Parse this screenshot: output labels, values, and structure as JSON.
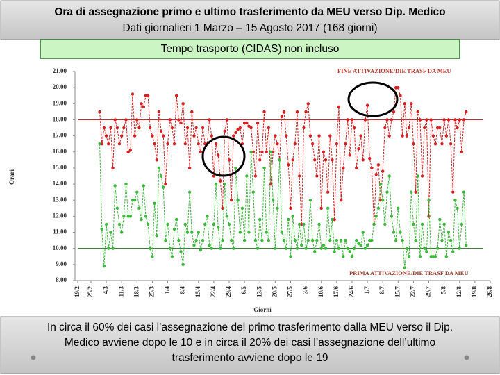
{
  "header": {
    "title": "Ora di assegnazione primo e ultimo trasferimento da MEU verso Dip. Medico",
    "subtitle": "Dati giornalieri 1 Marzo – 15 Agosto 2017 (168 giorni)",
    "note": "Tempo trasporto (CIDAS) non incluso"
  },
  "chart_data": {
    "type": "line",
    "x_label": "Giorni",
    "y_label": "Orari",
    "x": [
      0,
      1,
      2,
      3,
      4,
      5,
      6,
      7,
      8,
      9,
      10,
      11,
      12,
      13,
      14,
      15,
      16,
      17,
      18,
      19,
      20,
      21,
      22,
      23,
      24,
      25,
      26,
      27,
      28,
      29,
      30,
      31,
      32,
      33,
      34,
      35,
      36,
      37,
      38,
      39,
      40,
      41,
      42,
      43,
      44,
      45,
      46,
      47,
      48,
      49,
      50,
      51,
      52,
      53,
      54,
      55,
      56,
      57,
      58,
      59,
      60,
      61,
      62,
      63,
      64,
      65,
      66,
      67,
      68,
      69,
      70,
      71,
      72,
      73,
      74,
      75,
      76,
      77,
      78,
      79,
      80,
      81,
      82,
      83,
      84,
      85,
      86,
      87,
      88,
      89,
      90,
      91,
      92,
      93,
      94,
      95,
      96,
      97,
      98,
      99,
      100,
      101,
      102,
      103,
      104,
      105,
      106,
      107,
      108,
      109,
      110,
      111,
      112,
      113,
      114,
      115,
      116,
      117,
      118,
      119,
      120,
      121,
      122,
      123,
      124,
      125,
      126,
      127,
      128,
      129,
      130,
      131,
      132,
      133,
      134,
      135,
      136,
      137,
      138,
      139,
      140,
      141,
      142,
      143,
      144,
      145,
      146,
      147,
      148,
      149,
      150,
      151,
      152,
      153,
      154,
      155,
      156,
      157,
      158,
      159,
      160,
      161,
      162,
      163,
      164,
      165,
      166,
      167
    ],
    "series": [
      {
        "name": "FINE ATTIVAZIONE/DIE TRASF DA MEU",
        "color": "#d42020",
        "reference": 18,
        "values": [
          18.5,
          16.5,
          17.5,
          17.0,
          16.5,
          17.5,
          15.0,
          18.0,
          17.5,
          16.5,
          17.0,
          17.5,
          18.0,
          16.0,
          16.1,
          19.6,
          17.0,
          18.0,
          17.5,
          19.0,
          18.8,
          19.5,
          19.5,
          17.5,
          17.0,
          16.5,
          15.5,
          18.5,
          17.3,
          17.0,
          14.0,
          16.5,
          18.0,
          17.5,
          16.5,
          19.5,
          18.0,
          17.8,
          19.0,
          16.5,
          17.5,
          15.0,
          18.5,
          17.0,
          17.5,
          16.5,
          16.0,
          17.5,
          16.5,
          16.5,
          18.0,
          17.0,
          14.5,
          16.5,
          15.8,
          14.2,
          12.5,
          17.3,
          18.0,
          15.5,
          13.0,
          17.0,
          17.2,
          17.4,
          17.5,
          16.5,
          17.8,
          17.8,
          17.6,
          17.5,
          16.0,
          14.5,
          17.8,
          15.5,
          16.0,
          18.5,
          16.0,
          17.5,
          14.0,
          16.0,
          17.0,
          16.5,
          15.5,
          18.2,
          18.5,
          17.0,
          15.2,
          12.5,
          15.5,
          16.5,
          18.5,
          14.5,
          11.5,
          17.5,
          18.5,
          19.0,
          17.0,
          16.5,
          15.5,
          14.5,
          17.0,
          12.5,
          16.0,
          15.5,
          13.5,
          17.0,
          15.5,
          11.8,
          16.5,
          18.8,
          13.0,
          15.0,
          16.5,
          18.0,
          15.8,
          18.0,
          17.5,
          15.0,
          16.2,
          17.0,
          15.5,
          18.0,
          18.9,
          15.6,
          15.0,
          11.5,
          14.6,
          15.2,
          13.0,
          14.8,
          17.5,
          18.0,
          17.0,
          18.0,
          18.5,
          20.0,
          20.0,
          19.5,
          17.0,
          19.0,
          17.0,
          17.5,
          19.0,
          16.5,
          13.5,
          18.5,
          18.0,
          14.5,
          17.5,
          18.0,
          12.0,
          18.0,
          17.0,
          16.5,
          17.5,
          17.5,
          16.5,
          18.0,
          17.0,
          18.0,
          16.5,
          13.5,
          18.0,
          17.5,
          18.0,
          16.0,
          18.0,
          18.5
        ]
      },
      {
        "name": "PRIMA ATTIVAZIONE/DIE TRASF DA MEU",
        "color": "#3cb83c",
        "reference": 10,
        "values": [
          16.5,
          11.2,
          8.9,
          11.5,
          10.0,
          11.0,
          10.0,
          13.9,
          12.5,
          11.5,
          11.0,
          12.0,
          14.0,
          12.0,
          12.0,
          13.0,
          13.0,
          13.5,
          12.5,
          11.8,
          13.9,
          12.0,
          11.5,
          10.0,
          9.5,
          12.8,
          10.8,
          15.0,
          14.5,
          13.8,
          10.5,
          11.5,
          10.0,
          9.5,
          11.2,
          11.8,
          10.5,
          9.8,
          9.0,
          11.5,
          11.0,
          13.5,
          11.0,
          10.2,
          10.5,
          11.0,
          9.9,
          10.5,
          11.5,
          12.0,
          10.2,
          10.0,
          11.5,
          14.0,
          11.3,
          10.0,
          10.5,
          14.0,
          12.0,
          11.5,
          10.5,
          10.0,
          15.0,
          13.0,
          11.0,
          12.5,
          10.5,
          14.5,
          11.0,
          16.0,
          13.5,
          10.5,
          10.0,
          11.8,
          10.5,
          15.0,
          11.0,
          10.5,
          16.0,
          13.0,
          10.0,
          12.5,
          15.5,
          11.0,
          10.5,
          10.0,
          11.8,
          9.5,
          12.0,
          10.5,
          10.0,
          11.5,
          10.2,
          11.5,
          10.0,
          10.5,
          13.0,
          10.5,
          9.8,
          10.5,
          11.5,
          10.0,
          10.2,
          10.0,
          12.5,
          10.5,
          11.8,
          9.8,
          10.5,
          10.0,
          10.5,
          9.5,
          10.5,
          10.0,
          9.8,
          9.5,
          10.0,
          10.5,
          10.3,
          10.2,
          11.0,
          10.0,
          10.2,
          10.5,
          10.5,
          11.5,
          12.0,
          12.5,
          14.0,
          13.0,
          11.5,
          13.5,
          14.5,
          12.0,
          11.0,
          10.5,
          12.5,
          11.0,
          10.5,
          8.8,
          10.0,
          9.5,
          13.5,
          11.5,
          10.5,
          14.5,
          9.5,
          11.5,
          10.0,
          9.8,
          13.0,
          9.5,
          9.5,
          9.5,
          10.0,
          11.8,
          10.5,
          11.5,
          9.5,
          11.0,
          10.5,
          9.8,
          13.0,
          12.5,
          10.0,
          11.5,
          13.5,
          10.2
        ]
      }
    ],
    "ylim": [
      8,
      21
    ],
    "yticks": [
      {
        "value": 8,
        "label": "8.00"
      },
      {
        "value": 9,
        "label": "9.00"
      },
      {
        "value": 10,
        "label": "10.00"
      },
      {
        "value": 11,
        "label": "11.00"
      },
      {
        "value": 12,
        "label": "12.00"
      },
      {
        "value": 13,
        "label": "13.00"
      },
      {
        "value": 14,
        "label": "14.00"
      },
      {
        "value": 15,
        "label": "15.00"
      },
      {
        "value": 16,
        "label": "16.00"
      },
      {
        "value": 17,
        "label": "17.00"
      },
      {
        "value": 18,
        "label": "18.00"
      },
      {
        "value": 19,
        "label": "19.00"
      },
      {
        "value": 20,
        "label": "20.00"
      },
      {
        "value": 21,
        "label": "21.00"
      }
    ],
    "xlim": [
      -10,
      178
    ],
    "xticks": [
      {
        "value": -10,
        "label": "19/2"
      },
      {
        "value": -4,
        "label": "25/2"
      },
      {
        "value": 3,
        "label": "4/3"
      },
      {
        "value": 10,
        "label": "11/3"
      },
      {
        "value": 17,
        "label": "18/3"
      },
      {
        "value": 24,
        "label": "25/3"
      },
      {
        "value": 31,
        "label": "1/4"
      },
      {
        "value": 38,
        "label": "8/4"
      },
      {
        "value": 45,
        "label": "15/4"
      },
      {
        "value": 52,
        "label": "22/4"
      },
      {
        "value": 59,
        "label": "29/4"
      },
      {
        "value": 66,
        "label": "6/5"
      },
      {
        "value": 73,
        "label": "13/5"
      },
      {
        "value": 80,
        "label": "20/5"
      },
      {
        "value": 87,
        "label": "27/5"
      },
      {
        "value": 94,
        "label": "3/6"
      },
      {
        "value": 101,
        "label": "10/6"
      },
      {
        "value": 108,
        "label": "17/6"
      },
      {
        "value": 115,
        "label": "24/6"
      },
      {
        "value": 122,
        "label": "1/7"
      },
      {
        "value": 129,
        "label": "8/7"
      },
      {
        "value": 136,
        "label": "15/7"
      },
      {
        "value": 143,
        "label": "22/7"
      },
      {
        "value": 150,
        "label": "29/7"
      },
      {
        "value": 157,
        "label": "5/8"
      },
      {
        "value": 164,
        "label": "12/8"
      },
      {
        "value": 171,
        "label": "19/8"
      },
      {
        "value": 178,
        "label": "26/8"
      }
    ],
    "grid": false
  },
  "footer": {
    "lines": [
      "In circa il 60% dei casi l’assegnazione del primo trasferimento dalla MEU verso il Dip.",
      "Medico avviene dopo le 10 e in circa il 20% dei casi l’assegnazione dell’ultimo",
      "trasferimento avviene dopo le 19"
    ]
  }
}
